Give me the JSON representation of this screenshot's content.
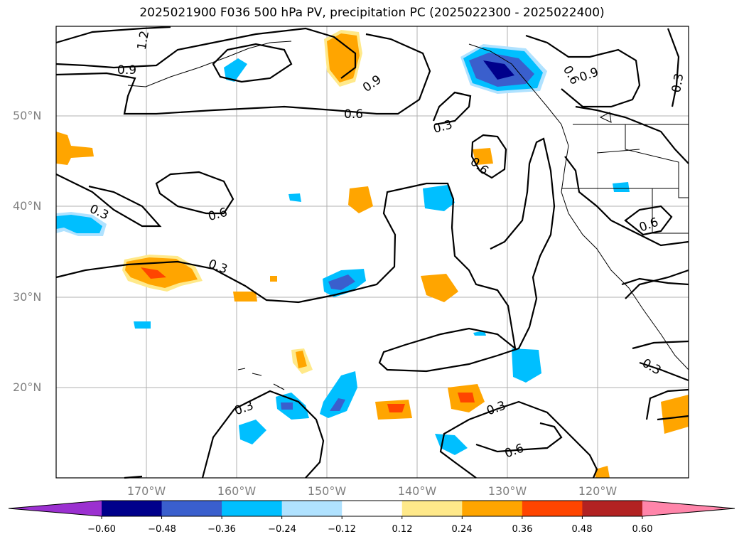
{
  "title": "2025021900 F036 500 hPa PV, precipitation PC (2025022300 - 2025022400)",
  "latitude_labels": [
    "50°N",
    "40°N",
    "30°N",
    "20°N"
  ],
  "longitude_labels": [
    "170°W",
    "160°W",
    "150°W",
    "140°W",
    "130°W",
    "120°W"
  ],
  "colorbar": {
    "ticks": [
      "−0.60",
      "−0.48",
      "−0.36",
      "−0.24",
      "−0.12",
      "0.12",
      "0.24",
      "0.36",
      "0.48",
      "0.60"
    ],
    "colors": [
      "#9b30d0",
      "#00008b",
      "#3a5fcd",
      "#00bfff",
      "#b0e2ff",
      "#ffffff",
      "#ffe98a",
      "#ffa500",
      "#ff4500",
      "#b22222",
      "#ff85aa"
    ]
  },
  "contour_labels": [
    "1.2",
    "0.9",
    "0.9",
    "0.9",
    "0.6",
    "0.6",
    "0.6",
    "0.6",
    "0.6",
    "0.6",
    "0.3",
    "0.3",
    "0.3",
    "0.3",
    "0.3",
    "0.3",
    "0.3"
  ]
}
